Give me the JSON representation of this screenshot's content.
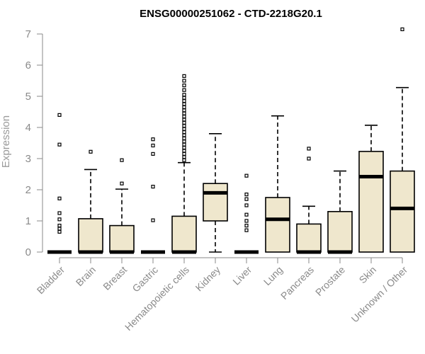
{
  "chart_data": {
    "type": "boxplot",
    "title": "ENSG00000251062 - CTD-2218G20.1",
    "ylabel": "Expression",
    "ylim": [
      0,
      7
    ],
    "yticks": [
      0,
      1,
      2,
      3,
      4,
      5,
      6,
      7
    ],
    "colors": {
      "box_fill": "#efe7cd",
      "stroke": "#000000",
      "axis": "#8a8a8a"
    },
    "categories": [
      "Bladder",
      "Brain",
      "Breast",
      "Gastric",
      "Hematopoietic cells",
      "Kidney",
      "Liver",
      "Lung",
      "Pancreas",
      "Prostate",
      "Skin",
      "Unknown / Other"
    ],
    "boxes": [
      {
        "q1": 0,
        "median": 0,
        "q3": 0,
        "whisker_low": 0,
        "whisker_high": 0,
        "outliers": [
          0.65,
          0.75,
          0.85,
          1.05,
          1.25,
          1.72,
          3.45,
          4.4
        ]
      },
      {
        "q1": 0,
        "median": 0,
        "q3": 1.07,
        "whisker_low": 0,
        "whisker_high": 2.65,
        "outliers": [
          3.22
        ]
      },
      {
        "q1": 0,
        "median": 0,
        "q3": 0.85,
        "whisker_low": 0,
        "whisker_high": 2.02,
        "outliers": [
          2.2,
          2.95
        ]
      },
      {
        "q1": 0,
        "median": 0,
        "q3": 0,
        "whisker_low": 0,
        "whisker_high": 0,
        "outliers": [
          1.02,
          2.1,
          3.15,
          3.42,
          3.62
        ]
      },
      {
        "q1": 0,
        "median": 0,
        "q3": 1.15,
        "whisker_low": 0,
        "whisker_high": 2.87,
        "outliers": [
          2.95,
          3.05,
          3.15,
          3.25,
          3.35,
          3.45,
          3.55,
          3.65,
          3.75,
          3.85,
          3.95,
          4.05,
          4.15,
          4.25,
          4.35,
          4.45,
          4.55,
          4.65,
          4.75,
          4.85,
          4.95,
          5.05,
          5.2,
          5.35,
          5.5,
          5.65
        ]
      },
      {
        "q1": 1.0,
        "median": 1.9,
        "q3": 2.2,
        "whisker_low": 0,
        "whisker_high": 3.8,
        "outliers": []
      },
      {
        "q1": 0,
        "median": 0,
        "q3": 0,
        "whisker_low": 0,
        "whisker_high": 0,
        "outliers": [
          0.7,
          0.85,
          1.0,
          1.2,
          1.5,
          1.7,
          1.85,
          2.45
        ]
      },
      {
        "q1": 0,
        "median": 1.05,
        "q3": 1.75,
        "whisker_low": 0,
        "whisker_high": 4.37,
        "outliers": []
      },
      {
        "q1": 0,
        "median": 0,
        "q3": 0.9,
        "whisker_low": 0,
        "whisker_high": 1.47,
        "outliers": [
          3.0,
          3.32
        ]
      },
      {
        "q1": 0,
        "median": 0,
        "q3": 1.3,
        "whisker_low": 0,
        "whisker_high": 2.6,
        "outliers": []
      },
      {
        "q1": 0,
        "median": 2.42,
        "q3": 3.23,
        "whisker_low": 0,
        "whisker_high": 4.07,
        "outliers": []
      },
      {
        "q1": 0,
        "median": 1.4,
        "q3": 2.6,
        "whisker_low": 0,
        "whisker_high": 5.28,
        "outliers": [
          7.15
        ]
      }
    ]
  }
}
